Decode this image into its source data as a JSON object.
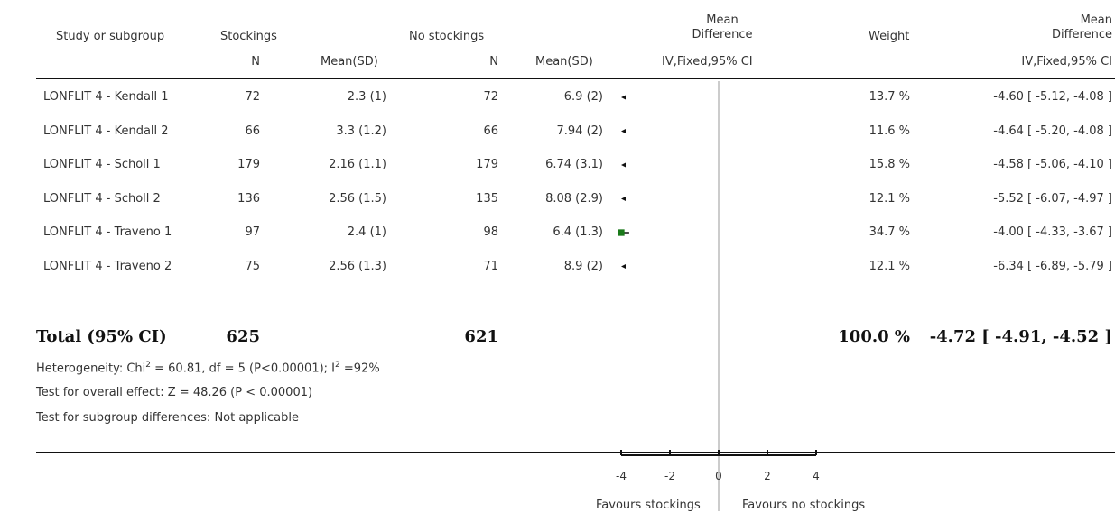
{
  "header": {
    "study": "Study or subgroup",
    "group1": "Stockings",
    "group2": "No stockings",
    "n1": "N",
    "mean1": "Mean(SD)",
    "n2": "N",
    "mean2": "Mean(SD)",
    "md_line1": "Mean",
    "md_line2": "Difference",
    "md_method": "IV,Fixed,95% CI",
    "weight": "Weight",
    "md2_line1": "Mean",
    "md2_line2": "Difference",
    "md2_method": "IV,Fixed,95% CI"
  },
  "total": {
    "label": "Total (95% CI)",
    "n1": "625",
    "n2": "621",
    "weight": "100.0 %",
    "ci_text": "-4.72 [ -4.91, -4.52 ]"
  },
  "footer": {
    "heterogeneity_pre": "Heterogeneity: Chi",
    "sup2": "2",
    "heterogeneity_mid": " = 60.81, df = 5 (P<0.00001); I",
    "heterogeneity_post": " =92%",
    "overall": "Test for overall effect: Z = 48.26 (P < 0.00001)",
    "subgroup": "Test for subgroup differences: Not applicable"
  },
  "axis": {
    "favours_left": "Favours stockings",
    "favours_right": "Favours no stockings"
  },
  "colors": {
    "square": "#1a7a1a",
    "line": "#111111",
    "zero_line": "#999999"
  },
  "chart_data": {
    "type": "forest",
    "xlim": [
      -4,
      4
    ],
    "ticks": [
      -4,
      -2,
      0,
      2,
      4
    ],
    "tick_labels": [
      "-4",
      "-2",
      "0",
      "2",
      "4"
    ],
    "rows": [
      {
        "study": "LONFLIT 4 - Kendall 1",
        "n1": "72",
        "mean1": "2.3 (1)",
        "n2": "72",
        "mean2": "6.9 (2)",
        "weight": "13.7 %",
        "ci_text": "-4.60 [ -5.12, -4.08 ]",
        "md": -4.6,
        "lo": -5.12,
        "hi": -4.08,
        "w": 13.7
      },
      {
        "study": "LONFLIT 4 - Kendall 2",
        "n1": "66",
        "mean1": "3.3 (1.2)",
        "n2": "66",
        "mean2": "7.94 (2)",
        "weight": "11.6 %",
        "ci_text": "-4.64 [ -5.20, -4.08 ]",
        "md": -4.64,
        "lo": -5.2,
        "hi": -4.08,
        "w": 11.6
      },
      {
        "study": "LONFLIT 4 - Scholl 1",
        "n1": "179",
        "mean1": "2.16 (1.1)",
        "n2": "179",
        "mean2": "6.74 (3.1)",
        "weight": "15.8 %",
        "ci_text": "-4.58 [ -5.06, -4.10 ]",
        "md": -4.58,
        "lo": -5.06,
        "hi": -4.1,
        "w": 15.8
      },
      {
        "study": "LONFLIT 4 - Scholl 2",
        "n1": "136",
        "mean1": "2.56 (1.5)",
        "n2": "135",
        "mean2": "8.08 (2.9)",
        "weight": "12.1 %",
        "ci_text": "-5.52 [ -6.07, -4.97 ]",
        "md": -5.52,
        "lo": -6.07,
        "hi": -4.97,
        "w": 12.1
      },
      {
        "study": "LONFLIT 4 - Traveno 1",
        "n1": "97",
        "mean1": "2.4 (1)",
        "n2": "98",
        "mean2": "6.4 (1.3)",
        "weight": "34.7 %",
        "ci_text": "-4.00 [ -4.33, -3.67 ]",
        "md": -4.0,
        "lo": -4.33,
        "hi": -3.67,
        "w": 34.7
      },
      {
        "study": "LONFLIT 4 - Traveno 2",
        "n1": "75",
        "mean1": "2.56 (1.3)",
        "n2": "71",
        "mean2": "8.9 (2)",
        "weight": "12.1 %",
        "ci_text": "-6.34 [ -6.89, -5.79 ]",
        "md": -6.34,
        "lo": -6.89,
        "hi": -5.79,
        "w": 12.1
      }
    ],
    "pooled": {
      "md": -4.72,
      "lo": -4.91,
      "hi": -4.52
    }
  }
}
